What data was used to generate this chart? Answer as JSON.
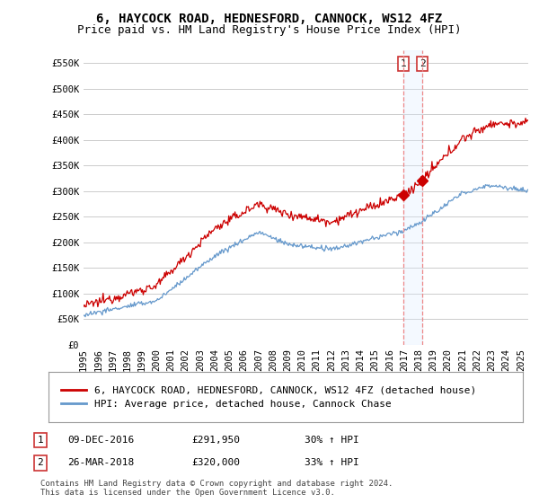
{
  "title": "6, HAYCOCK ROAD, HEDNESFORD, CANNOCK, WS12 4FZ",
  "subtitle": "Price paid vs. HM Land Registry's House Price Index (HPI)",
  "ylabel_ticks": [
    "£0",
    "£50K",
    "£100K",
    "£150K",
    "£200K",
    "£250K",
    "£300K",
    "£350K",
    "£400K",
    "£450K",
    "£500K",
    "£550K"
  ],
  "ytick_values": [
    0,
    50000,
    100000,
    150000,
    200000,
    250000,
    300000,
    350000,
    400000,
    450000,
    500000,
    550000
  ],
  "ylim": [
    0,
    575000
  ],
  "xlim_start": 1995.0,
  "xlim_end": 2025.5,
  "years_ticks": [
    1995,
    1996,
    1997,
    1998,
    1999,
    2000,
    2001,
    2002,
    2003,
    2004,
    2005,
    2006,
    2007,
    2008,
    2009,
    2010,
    2011,
    2012,
    2013,
    2014,
    2015,
    2016,
    2017,
    2018,
    2019,
    2020,
    2021,
    2022,
    2023,
    2024,
    2025
  ],
  "red_line_color": "#cc0000",
  "blue_line_color": "#6699cc",
  "vline_color": "#ee8888",
  "vline_x1": 2016.94,
  "vline_x2": 2018.23,
  "marker1_x": 2016.94,
  "marker1_y": 291950,
  "marker2_x": 2018.23,
  "marker2_y": 320000,
  "legend_line1": "6, HAYCOCK ROAD, HEDNESFORD, CANNOCK, WS12 4FZ (detached house)",
  "legend_line2": "HPI: Average price, detached house, Cannock Chase",
  "annotation1_num": "1",
  "annotation1_date": "09-DEC-2016",
  "annotation1_price": "£291,950",
  "annotation1_hpi": "30% ↑ HPI",
  "annotation2_num": "2",
  "annotation2_date": "26-MAR-2018",
  "annotation2_price": "£320,000",
  "annotation2_hpi": "33% ↑ HPI",
  "footer": "Contains HM Land Registry data © Crown copyright and database right 2024.\nThis data is licensed under the Open Government Licence v3.0.",
  "bg_color": "#ffffff",
  "plot_bg_color": "#ffffff",
  "grid_color": "#cccccc",
  "title_fontsize": 10,
  "subtitle_fontsize": 9,
  "label_fontsize": 7.5,
  "highlight_color": "#ddeeff",
  "label_box_color": "#cc3333"
}
